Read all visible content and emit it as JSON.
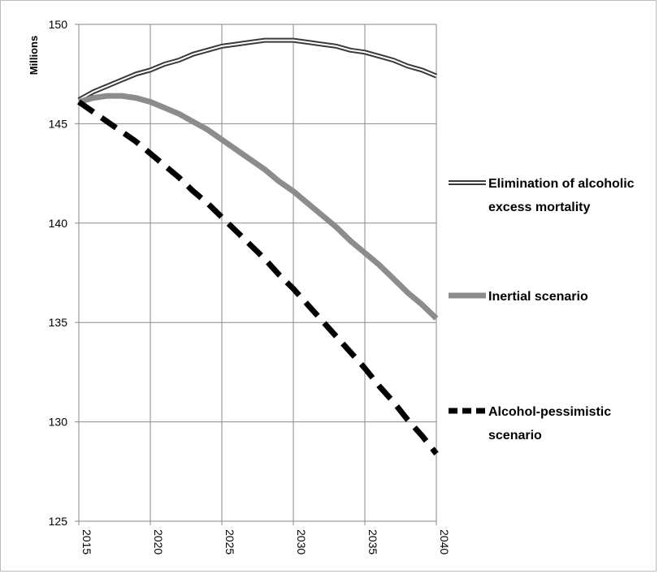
{
  "chart_data": {
    "type": "line",
    "ylabel": "Millions",
    "xlabel": "",
    "title": "",
    "xlim": [
      2015,
      2040
    ],
    "ylim": [
      125,
      150
    ],
    "xticks": [
      "2015",
      "2020",
      "2025",
      "2030",
      "2035",
      "2040"
    ],
    "yticks": [
      "125",
      "130",
      "135",
      "140",
      "145",
      "150"
    ],
    "grid": "vertical and horizontal major gridlines",
    "legend_position": "right",
    "x": [
      2015,
      2016,
      2017,
      2018,
      2019,
      2020,
      2021,
      2022,
      2023,
      2024,
      2025,
      2026,
      2027,
      2028,
      2029,
      2030,
      2031,
      2032,
      2033,
      2034,
      2035,
      2036,
      2037,
      2038,
      2039,
      2040
    ],
    "series": [
      {
        "name": "Elimination of alcoholic excess mortality",
        "style": "double-line",
        "color": "#3a3a3a",
        "values": [
          146.2,
          146.6,
          146.9,
          147.2,
          147.5,
          147.7,
          148.0,
          148.2,
          148.5,
          148.7,
          148.9,
          149.0,
          149.1,
          149.2,
          149.2,
          149.2,
          149.1,
          149.0,
          148.9,
          148.7,
          148.6,
          148.4,
          148.2,
          147.9,
          147.7,
          147.4
        ]
      },
      {
        "name": "Inertial scenario",
        "style": "solid-gray",
        "color": "#8c8c8c",
        "values": [
          146.1,
          146.3,
          146.4,
          146.4,
          146.3,
          146.1,
          145.8,
          145.5,
          145.1,
          144.7,
          144.2,
          143.7,
          143.2,
          142.7,
          142.1,
          141.6,
          141.0,
          140.4,
          139.8,
          139.1,
          138.5,
          137.9,
          137.2,
          136.5,
          135.9,
          135.2
        ]
      },
      {
        "name": "Alcohol-pessimistic scenario",
        "style": "dashed-black",
        "color": "#000000",
        "values": [
          146.1,
          145.6,
          145.1,
          144.6,
          144.1,
          143.5,
          142.9,
          142.3,
          141.6,
          141.0,
          140.3,
          139.6,
          138.9,
          138.2,
          137.4,
          136.7,
          135.9,
          135.1,
          134.3,
          133.5,
          132.7,
          131.8,
          131.0,
          130.1,
          129.3,
          128.4
        ]
      }
    ],
    "legend": [
      {
        "lines": [
          "Elimination of alcoholic",
          "excess mortality"
        ]
      },
      {
        "lines": [
          "Inertial scenario"
        ]
      },
      {
        "lines": [
          "Alcohol-pessimistic",
          "scenario"
        ]
      }
    ]
  }
}
